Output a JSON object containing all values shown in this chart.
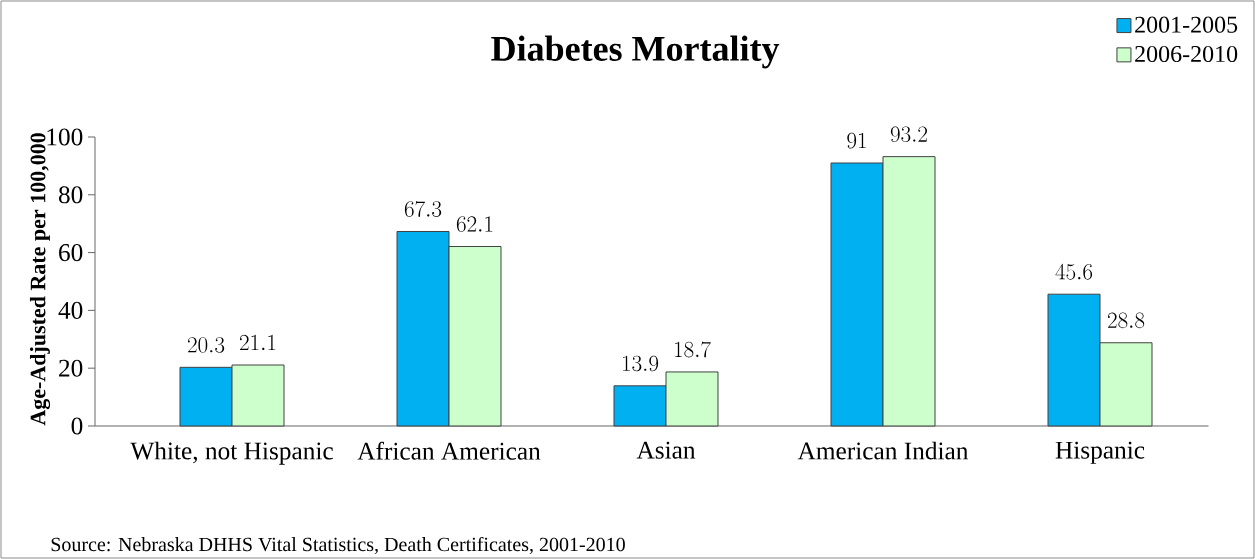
{
  "chart_data": {
    "type": "bar",
    "title": "Diabetes Mortality",
    "ylabel": "Age-Adjusted Rate per 100,000",
    "categories": [
      "White, not Hispanic",
      "African American",
      "Asian",
      "American Indian",
      "Hispanic"
    ],
    "series": [
      {
        "name": "2001-2005",
        "color": "#00b0f0",
        "values": [
          20.3,
          67.3,
          13.9,
          91,
          45.6
        ]
      },
      {
        "name": "2006-2010",
        "color": "#ccffcc",
        "values": [
          21.1,
          62.1,
          18.7,
          93.2,
          28.8
        ]
      }
    ],
    "ylim": [
      0,
      100
    ],
    "yticks": [
      0,
      20,
      40,
      60,
      80,
      100
    ],
    "data_labels": true,
    "legend": "top right",
    "grid": false,
    "annotations": [
      "Source: Nebraska DHHS Vital Statistics, Death Certificates, 2001-2010"
    ]
  }
}
